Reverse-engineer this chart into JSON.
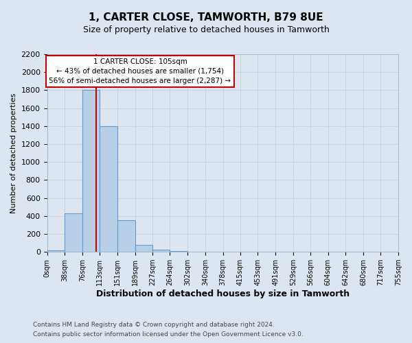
{
  "title": "1, CARTER CLOSE, TAMWORTH, B79 8UE",
  "subtitle": "Size of property relative to detached houses in Tamworth",
  "xlabel": "Distribution of detached houses by size in Tamworth",
  "ylabel": "Number of detached properties",
  "bin_edges": [
    0,
    38,
    76,
    113,
    151,
    189,
    227,
    264,
    302,
    340,
    378,
    415,
    453,
    491,
    529,
    566,
    604,
    642,
    680,
    717,
    755
  ],
  "bin_labels": [
    "0sqm",
    "38sqm",
    "76sqm",
    "113sqm",
    "151sqm",
    "189sqm",
    "227sqm",
    "264sqm",
    "302sqm",
    "340sqm",
    "378sqm",
    "415sqm",
    "453sqm",
    "491sqm",
    "529sqm",
    "566sqm",
    "604sqm",
    "642sqm",
    "680sqm",
    "717sqm",
    "755sqm"
  ],
  "bar_heights": [
    20,
    430,
    1800,
    1400,
    350,
    75,
    25,
    10,
    0,
    0,
    0,
    0,
    0,
    0,
    0,
    0,
    0,
    0,
    0,
    0
  ],
  "bar_color": "#b8cfe8",
  "bar_edge_color": "#6699cc",
  "property_size": 105,
  "vline_color": "#cc0000",
  "ylim": [
    0,
    2200
  ],
  "yticks": [
    0,
    200,
    400,
    600,
    800,
    1000,
    1200,
    1400,
    1600,
    1800,
    2000,
    2200
  ],
  "annotation_title": "1 CARTER CLOSE: 105sqm",
  "annotation_line1": "← 43% of detached houses are smaller (1,754)",
  "annotation_line2": "56% of semi-detached houses are larger (2,287) →",
  "annotation_box_color": "#ffffff",
  "annotation_box_edge": "#cc0000",
  "grid_color": "#ccd4e0",
  "background_color": "#dde6f0",
  "footer1": "Contains HM Land Registry data © Crown copyright and database right 2024.",
  "footer2": "Contains public sector information licensed under the Open Government Licence v3.0."
}
